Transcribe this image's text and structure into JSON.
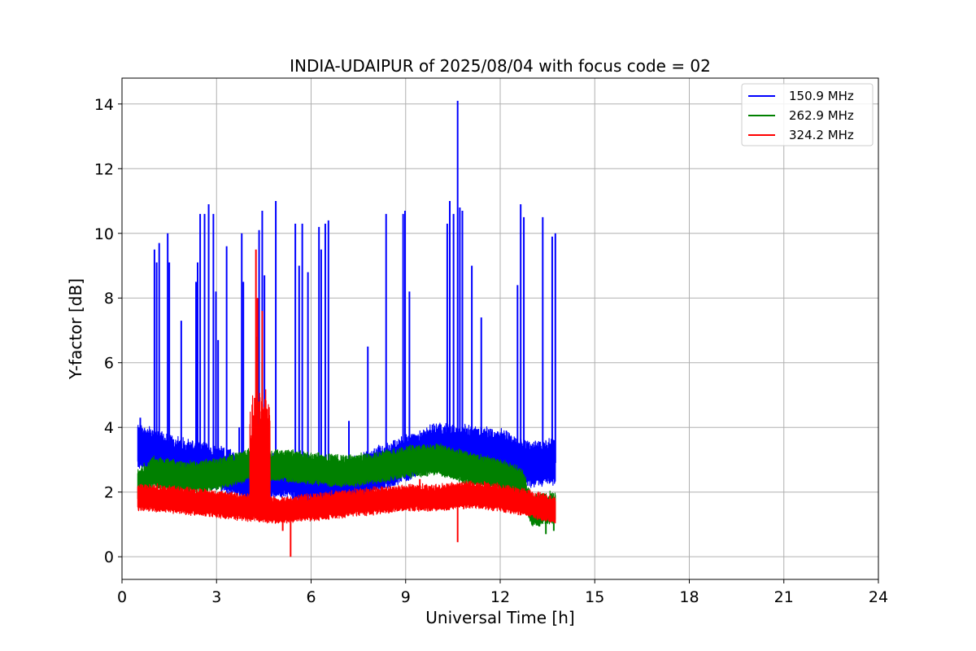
{
  "chart_data": {
    "type": "line",
    "title": "INDIA-UDAIPUR of 2025/08/04 with focus code = 02",
    "xlabel": "Universal Time [h]",
    "ylabel": "Y-factor [dB]",
    "xlim": [
      0,
      24
    ],
    "ylim": [
      -0.7,
      14.8
    ],
    "xticks": [
      "0",
      "3",
      "6",
      "9",
      "12",
      "15",
      "18",
      "21",
      "24"
    ],
    "yticks": [
      "0",
      "2",
      "4",
      "6",
      "8",
      "10",
      "12",
      "14"
    ],
    "grid": true,
    "legend_position": "top-right",
    "data_range_x": [
      0.5,
      13.75
    ],
    "series": [
      {
        "name": "150.9 MHz",
        "color": "#0000ff",
        "baseline": [
          [
            0.5,
            3.4
          ],
          [
            1.0,
            3.2
          ],
          [
            2.0,
            2.9
          ],
          [
            3.0,
            2.7
          ],
          [
            4.0,
            2.4
          ],
          [
            5.0,
            2.5
          ],
          [
            6.0,
            2.3
          ],
          [
            7.0,
            2.2
          ],
          [
            8.0,
            2.6
          ],
          [
            9.0,
            3.0
          ],
          [
            10.0,
            3.4
          ],
          [
            11.0,
            3.3
          ],
          [
            12.0,
            3.2
          ],
          [
            13.0,
            2.8
          ],
          [
            13.75,
            2.9
          ]
        ],
        "noise": [
          0.8,
          1.0
        ],
        "spikes": [
          [
            0.58,
            4.3
          ],
          [
            1.03,
            9.5
          ],
          [
            1.1,
            9.1
          ],
          [
            1.18,
            9.7
          ],
          [
            1.45,
            10.0
          ],
          [
            1.5,
            9.1
          ],
          [
            1.88,
            7.3
          ],
          [
            2.35,
            8.5
          ],
          [
            2.4,
            9.1
          ],
          [
            2.48,
            10.6
          ],
          [
            2.62,
            10.6
          ],
          [
            2.75,
            10.9
          ],
          [
            2.9,
            10.6
          ],
          [
            2.98,
            8.2
          ],
          [
            3.05,
            6.7
          ],
          [
            3.32,
            9.6
          ],
          [
            3.72,
            4.0
          ],
          [
            3.8,
            10.0
          ],
          [
            3.85,
            8.5
          ],
          [
            4.35,
            10.1
          ],
          [
            4.45,
            10.7
          ],
          [
            4.52,
            8.7
          ],
          [
            4.88,
            11.0
          ],
          [
            5.5,
            10.3
          ],
          [
            5.62,
            9.0
          ],
          [
            5.72,
            10.3
          ],
          [
            5.9,
            8.8
          ],
          [
            6.25,
            10.2
          ],
          [
            6.32,
            9.5
          ],
          [
            6.45,
            10.3
          ],
          [
            6.55,
            10.4
          ],
          [
            7.2,
            4.2
          ],
          [
            7.8,
            6.5
          ],
          [
            8.38,
            10.6
          ],
          [
            8.92,
            10.6
          ],
          [
            8.98,
            10.7
          ],
          [
            9.12,
            8.2
          ],
          [
            10.32,
            10.3
          ],
          [
            10.4,
            11.0
          ],
          [
            10.52,
            10.6
          ],
          [
            10.65,
            14.1
          ],
          [
            10.72,
            10.8
          ],
          [
            10.8,
            10.7
          ],
          [
            11.1,
            9.0
          ],
          [
            11.4,
            7.4
          ],
          [
            12.55,
            8.4
          ],
          [
            12.65,
            10.9
          ],
          [
            12.75,
            10.5
          ],
          [
            13.35,
            10.5
          ],
          [
            13.65,
            9.9
          ],
          [
            13.75,
            10.0
          ]
        ]
      },
      {
        "name": "262.9 MHz",
        "color": "#008000",
        "baseline": [
          [
            0.5,
            2.2
          ],
          [
            1.0,
            2.6
          ],
          [
            2.0,
            2.4
          ],
          [
            3.0,
            2.5
          ],
          [
            4.0,
            2.8
          ],
          [
            5.0,
            2.8
          ],
          [
            6.0,
            2.7
          ],
          [
            7.0,
            2.6
          ],
          [
            8.0,
            2.7
          ],
          [
            9.0,
            2.9
          ],
          [
            10.0,
            3.0
          ],
          [
            11.0,
            2.7
          ],
          [
            12.0,
            2.5
          ],
          [
            12.7,
            2.2
          ],
          [
            13.0,
            1.4
          ],
          [
            13.75,
            1.5
          ]
        ],
        "noise": [
          0.6,
          0.7
        ],
        "spikes": [
          [
            4.3,
            6.8
          ],
          [
            4.45,
            6.0
          ],
          [
            13.45,
            0.7
          ],
          [
            13.7,
            0.8
          ]
        ]
      },
      {
        "name": "324.2 MHz",
        "color": "#ff0000",
        "baseline": [
          [
            0.5,
            1.8
          ],
          [
            1.0,
            1.8
          ],
          [
            2.0,
            1.7
          ],
          [
            3.0,
            1.6
          ],
          [
            4.0,
            1.5
          ],
          [
            5.0,
            1.4
          ],
          [
            6.0,
            1.5
          ],
          [
            7.0,
            1.6
          ],
          [
            8.0,
            1.7
          ],
          [
            9.0,
            1.8
          ],
          [
            10.0,
            1.8
          ],
          [
            11.0,
            1.9
          ],
          [
            12.0,
            1.8
          ],
          [
            13.0,
            1.6
          ],
          [
            13.75,
            1.4
          ]
        ],
        "noise": [
          0.5,
          0.6
        ],
        "spikes": [
          [
            4.25,
            9.5
          ],
          [
            4.3,
            8.0
          ],
          [
            4.45,
            7.6
          ],
          [
            5.1,
            0.8
          ],
          [
            5.35,
            0.0
          ],
          [
            9.45,
            2.4
          ],
          [
            10.65,
            0.45
          ]
        ],
        "bursts": [
          [
            4.05,
            4.7,
            5.2
          ]
        ]
      }
    ]
  }
}
